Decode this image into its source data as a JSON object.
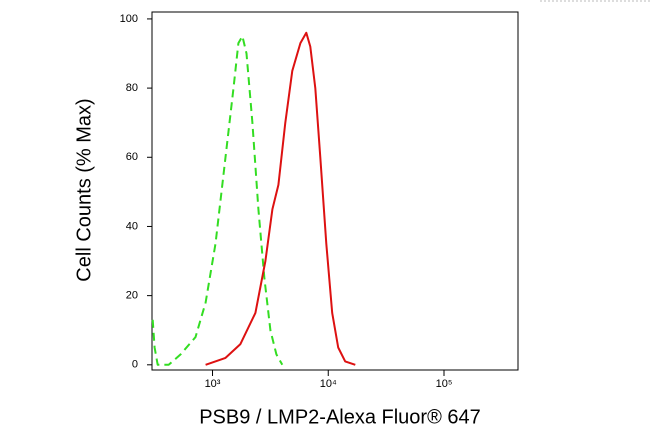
{
  "chart_data": {
    "type": "line",
    "x_label": "PSB9 / LMP2-Alexa Fluor® 647",
    "y_label": "Cell Counts (% Max)",
    "xscale": "log",
    "xlim": [
      300,
      436000
    ],
    "ylim": [
      -1.5,
      102
    ],
    "xticks": [
      {
        "value": 1000,
        "label": "10³"
      },
      {
        "value": 10000,
        "label": "10⁴"
      },
      {
        "value": 100000,
        "label": "10⁵"
      }
    ],
    "yticks": [
      0,
      20,
      40,
      60,
      80,
      100
    ],
    "series": [
      {
        "color": "#33dd22",
        "dash": true,
        "x": [
          304,
          316,
          336,
          418,
          530,
          713,
          871,
          1061,
          1294,
          1517,
          1675,
          1814,
          1965,
          2213,
          2493,
          2807,
          3162,
          3563,
          4012
        ],
        "values": [
          13,
          5,
          0,
          0,
          3,
          8,
          18,
          35,
          60,
          80,
          93,
          95,
          90,
          70,
          45,
          25,
          10,
          3,
          0
        ]
      },
      {
        "color": "#dd1111",
        "dash": false,
        "x": [
          871,
          1294,
          1742,
          2349,
          2864,
          3290,
          3706,
          4256,
          4893,
          5741,
          6459,
          6995,
          7727,
          8536,
          9613,
          10826,
          12191,
          14020,
          17113
        ],
        "values": [
          0,
          2,
          6,
          15,
          30,
          45,
          52,
          70,
          85,
          93,
          96,
          92,
          80,
          60,
          35,
          15,
          5,
          1,
          0
        ]
      }
    ]
  }
}
